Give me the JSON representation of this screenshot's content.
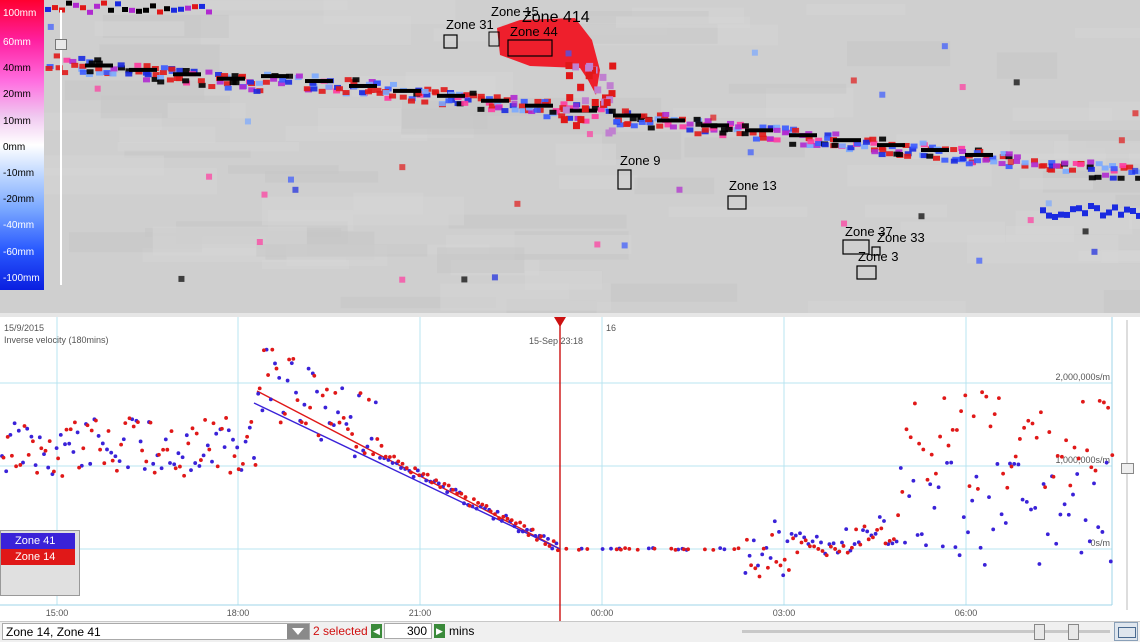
{
  "scale": {
    "labels": [
      "100mm",
      "60mm",
      "40mm",
      "20mm",
      "10mm",
      "0mm",
      "-10mm",
      "-20mm",
      "-40mm",
      "-60mm",
      "-100mm"
    ]
  },
  "zones": [
    {
      "name": "Zone 15"
    },
    {
      "name": "Zone 414"
    },
    {
      "name": "Zone 31"
    },
    {
      "name": "Zone 44"
    },
    {
      "name": "Zone 9"
    },
    {
      "name": "Zone 13"
    },
    {
      "name": "Zone 37"
    },
    {
      "name": "Zone 33"
    },
    {
      "name": "Zone 3"
    }
  ],
  "chart": {
    "date_left": "15/9/2015",
    "subtitle": "Inverse velocity (180mins)",
    "date_right": "16",
    "cursor_label": "15-Sep  23:18",
    "y_ticks": [
      "2,000,000s/m",
      "1,000,000s/m",
      "0s/m"
    ],
    "x_ticks": [
      "15:00",
      "18:00",
      "21:00",
      "00:00",
      "03:00",
      "06:00"
    ]
  },
  "chart_data": {
    "type": "scatter",
    "title": "Inverse velocity (180mins)",
    "x_ticks": [
      "15:00",
      "18:00",
      "21:00",
      "00:00",
      "03:00",
      "06:00"
    ],
    "y_ticks": [
      "0s/m",
      "1,000,000s/m",
      "2,000,000s/m"
    ],
    "ylim": [
      -600000,
      2600000
    ],
    "cursor": "15-Sep 23:18",
    "series": [
      {
        "name": "Zone 41",
        "color": "#3a22d8"
      },
      {
        "name": "Zone 14",
        "color": "#e01818"
      }
    ]
  },
  "legend": {
    "items": [
      {
        "label": "Zone 41",
        "color": "#3a22d8"
      },
      {
        "label": "Zone 14",
        "color": "#e01818"
      }
    ]
  },
  "bottombar": {
    "zone_selection": "Zone 14, Zone 41",
    "selected_count": "2 selected",
    "minutes_value": "300",
    "minutes_unit": "mins"
  },
  "colors": {
    "red": "#e01818",
    "blue": "#3a22d8",
    "grid": "#b8e4f0",
    "cursor": "#cc1010"
  }
}
